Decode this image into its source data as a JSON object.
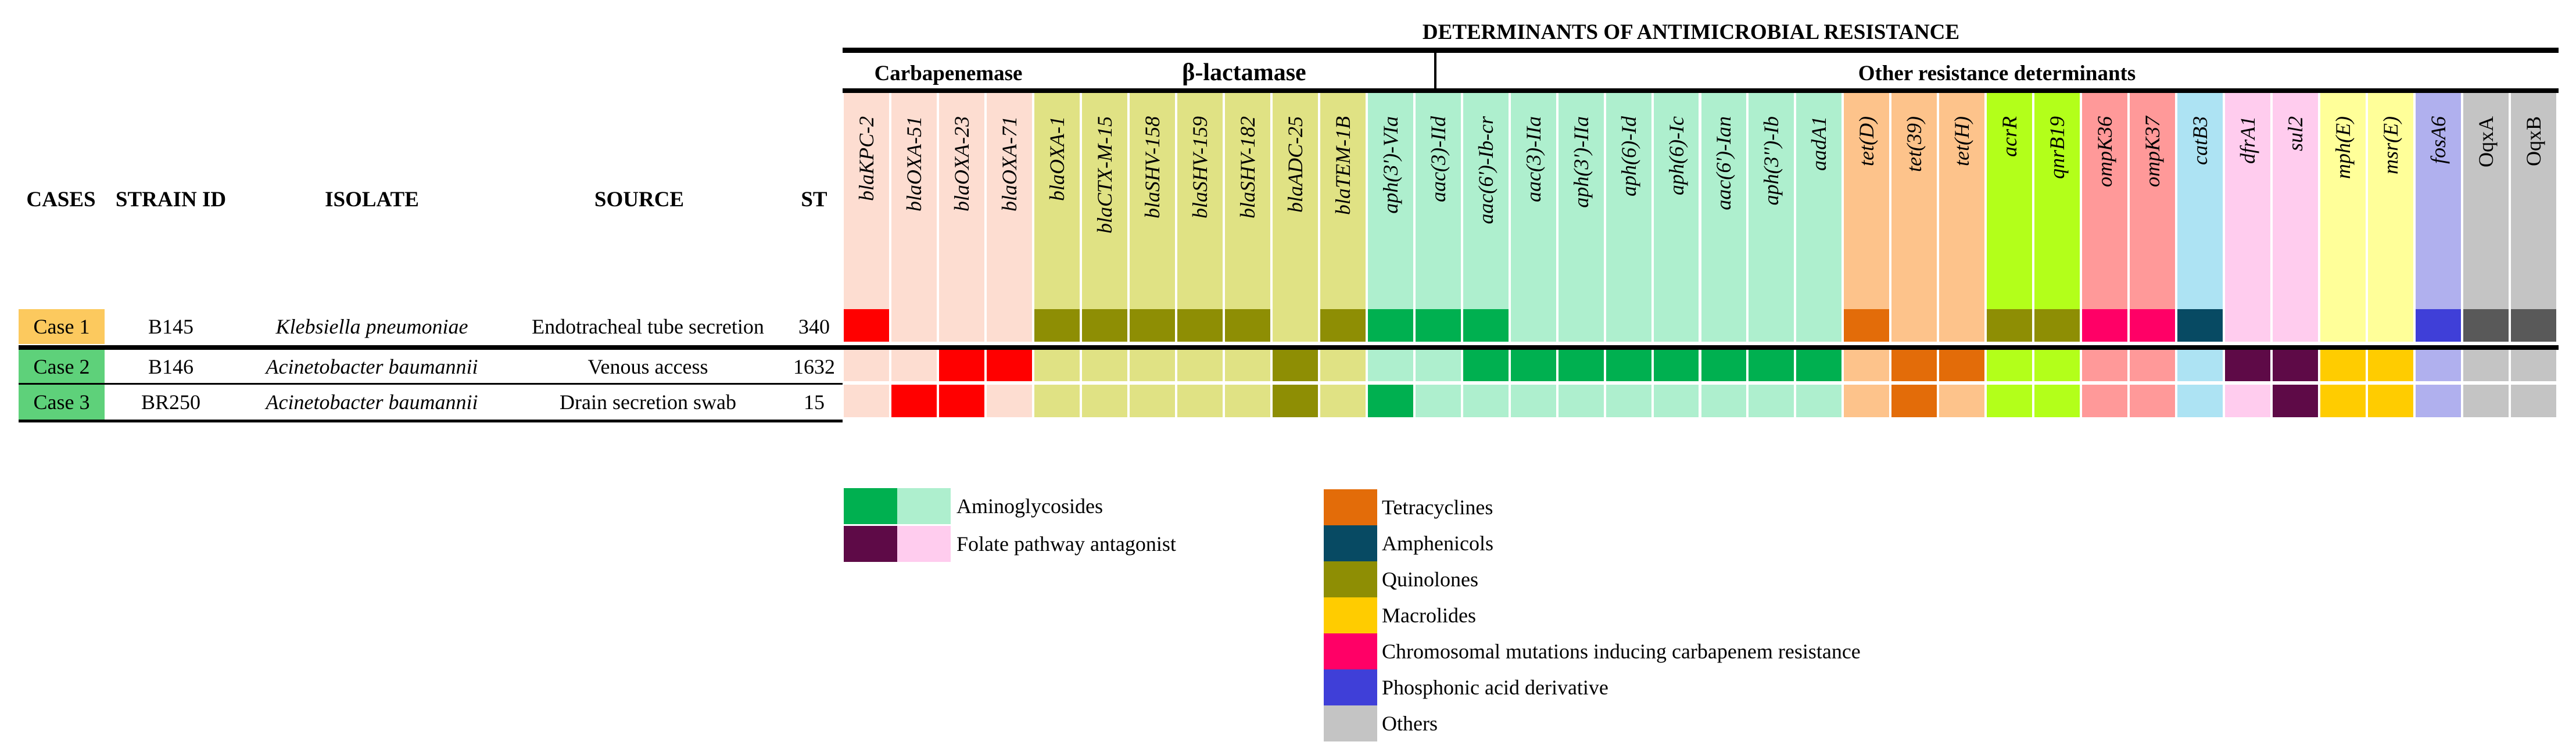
{
  "title": "DETERMINANTS OF ANTIMICROBIAL RESISTANCE",
  "groups": {
    "carbapenemase": "Carbapenemase",
    "beta_lactamase": "β-lactamase",
    "other": "Other resistance determinants"
  },
  "columns_left": {
    "cases": "CASES",
    "strain_id": "STRAIN ID",
    "isolate": "ISOLATE",
    "source": "SOURCE",
    "st": "ST"
  },
  "genes": [
    {
      "name": "blaKPC-2",
      "italic": true,
      "light": "#FDDDD1",
      "dark": "#FF0000"
    },
    {
      "name": "blaOXA-51",
      "italic": true,
      "light": "#FDDDD1",
      "dark": "#FF0000"
    },
    {
      "name": "blaOXA-23",
      "italic": true,
      "light": "#FDDDD1",
      "dark": "#FF0000"
    },
    {
      "name": "blaOXA-71",
      "italic": true,
      "light": "#FDDDD1",
      "dark": "#FF0000"
    },
    {
      "name": "blaOXA-1",
      "italic": true,
      "light": "#E0E284",
      "dark": "#8E8E04"
    },
    {
      "name": "blaCTX-M-15",
      "italic": true,
      "light": "#E0E284",
      "dark": "#8E8E04"
    },
    {
      "name": "blaSHV-158",
      "italic": true,
      "light": "#E0E284",
      "dark": "#8E8E04"
    },
    {
      "name": "blaSHV-159",
      "italic": true,
      "light": "#E0E284",
      "dark": "#8E8E04"
    },
    {
      "name": "blaSHV-182",
      "italic": true,
      "light": "#E0E284",
      "dark": "#8E8E04"
    },
    {
      "name": "blaADC-25",
      "italic": true,
      "light": "#E0E284",
      "dark": "#8E8E04"
    },
    {
      "name": "blaTEM-1B",
      "italic": true,
      "light": "#E0E284",
      "dark": "#8E8E04"
    },
    {
      "name": "aph(3')-VIa",
      "italic": true,
      "light": "#AEEFCE",
      "dark": "#00B050"
    },
    {
      "name": "aac(3)-IId",
      "italic": true,
      "light": "#AEEFCE",
      "dark": "#00B050"
    },
    {
      "name": "aac(6')-Ib-cr",
      "italic": true,
      "light": "#AEEFCE",
      "dark": "#00B050"
    },
    {
      "name": "aac(3)-IIa",
      "italic": true,
      "light": "#AEEFCE",
      "dark": "#00B050"
    },
    {
      "name": "aph(3')-IIa",
      "italic": true,
      "light": "#AEEFCE",
      "dark": "#00B050"
    },
    {
      "name": "aph(6)-Id",
      "italic": true,
      "light": "#AEEFCE",
      "dark": "#00B050"
    },
    {
      "name": "aph(6)-Ic",
      "italic": true,
      "light": "#AEEFCE",
      "dark": "#00B050"
    },
    {
      "name": "aac(6')-Ian",
      "italic": true,
      "light": "#AEEFCE",
      "dark": "#00B050"
    },
    {
      "name": "aph(3'')-Ib",
      "italic": true,
      "light": "#AEEFCE",
      "dark": "#00B050"
    },
    {
      "name": "aadA1",
      "italic": true,
      "light": "#AEEFCE",
      "dark": "#00B050"
    },
    {
      "name": "tet(D)",
      "italic": true,
      "light": "#FDC38B",
      "dark": "#E36C09"
    },
    {
      "name": "tet(39)",
      "italic": true,
      "light": "#FDC38B",
      "dark": "#E36C09"
    },
    {
      "name": "tet(H)",
      "italic": true,
      "light": "#FDC38B",
      "dark": "#E36C09"
    },
    {
      "name": "acrR",
      "italic": true,
      "light": "#B3FF1A",
      "dark": "#8E8E04"
    },
    {
      "name": "qnrB19",
      "italic": true,
      "light": "#B3FF1A",
      "dark": "#8E8E04"
    },
    {
      "name": "ompK36",
      "italic": true,
      "light": "#FF9999",
      "dark": "#FF0066"
    },
    {
      "name": "ompK37",
      "italic": true,
      "light": "#FF9999",
      "dark": "#FF0066"
    },
    {
      "name": "catB3",
      "italic": true,
      "light": "#ADE3F3",
      "dark": "#074A63"
    },
    {
      "name": "dfrA1",
      "italic": true,
      "light": "#FFCCEE",
      "dark": "#5E0A47"
    },
    {
      "name": "sul2",
      "italic": true,
      "light": "#FFCCEE",
      "dark": "#5E0A47"
    },
    {
      "name": "mph(E)",
      "italic": true,
      "light": "#FFFF99",
      "dark": "#FFCC00"
    },
    {
      "name": "msr(E)",
      "italic": true,
      "light": "#FFFF99",
      "dark": "#FFCC00"
    },
    {
      "name": "fosA6",
      "italic": true,
      "light": "#B0B0EE",
      "dark": "#3F3FD8"
    },
    {
      "name": "OqxA",
      "italic": false,
      "light": "#C4C4C4",
      "dark": "#595959"
    },
    {
      "name": "OqxB",
      "italic": false,
      "light": "#C4C4C4",
      "dark": "#595959"
    }
  ],
  "cases": [
    {
      "label": "Case 1",
      "badge_color": "#FCC95E",
      "strain_id": "B145",
      "isolate": "Klebsiella pneumoniae",
      "source": "Endotracheal tube secretion",
      "st": "340",
      "present": [
        1,
        0,
        0,
        0,
        1,
        1,
        1,
        1,
        1,
        0,
        1,
        1,
        1,
        1,
        0,
        0,
        0,
        0,
        0,
        0,
        0,
        1,
        0,
        0,
        1,
        1,
        1,
        1,
        1,
        0,
        0,
        0,
        0,
        1,
        1,
        1
      ]
    },
    {
      "label": "Case 2",
      "badge_color": "#5ED17A",
      "strain_id": "B146",
      "isolate": "Acinetobacter baumannii",
      "source": "Venous access",
      "st": "1632",
      "present": [
        0,
        0,
        1,
        1,
        0,
        0,
        0,
        0,
        0,
        1,
        0,
        0,
        0,
        1,
        1,
        1,
        1,
        1,
        1,
        1,
        1,
        0,
        1,
        1,
        0,
        0,
        0,
        0,
        0,
        1,
        1,
        1,
        1,
        0,
        0,
        0
      ]
    },
    {
      "label": "Case 3",
      "badge_color": "#5ED17A",
      "strain_id": "BR250",
      "isolate": "Acinetobacter baumannii",
      "source": "Drain secretion swab",
      "st": "15",
      "present": [
        0,
        1,
        1,
        0,
        0,
        0,
        0,
        0,
        0,
        1,
        0,
        1,
        0,
        0,
        0,
        0,
        0,
        0,
        0,
        0,
        0,
        0,
        1,
        0,
        0,
        0,
        0,
        0,
        0,
        0,
        1,
        1,
        1,
        0,
        0,
        0
      ]
    }
  ],
  "legend": [
    {
      "label": "Aminoglycosides",
      "dark": "#00B050",
      "light": "#AEEFCE"
    },
    {
      "label": "Folate pathway antagonist",
      "dark": "#5E0A47",
      "light": "#FFCCEE"
    },
    {
      "label": "Tetracyclines",
      "dark": "#E36C09"
    },
    {
      "label": "Amphenicols",
      "dark": "#074A63"
    },
    {
      "label": "Quinolones",
      "dark": "#8E8E04"
    },
    {
      "label": "Macrolides",
      "dark": "#FFCC00"
    },
    {
      "label": "Chromosomal mutations inducing carbapenem resistance",
      "dark": "#FF0066"
    },
    {
      "label": "Phosphonic acid derivative",
      "dark": "#3F3FD8"
    },
    {
      "label": "Others",
      "dark": "#C4C4C4"
    }
  ]
}
